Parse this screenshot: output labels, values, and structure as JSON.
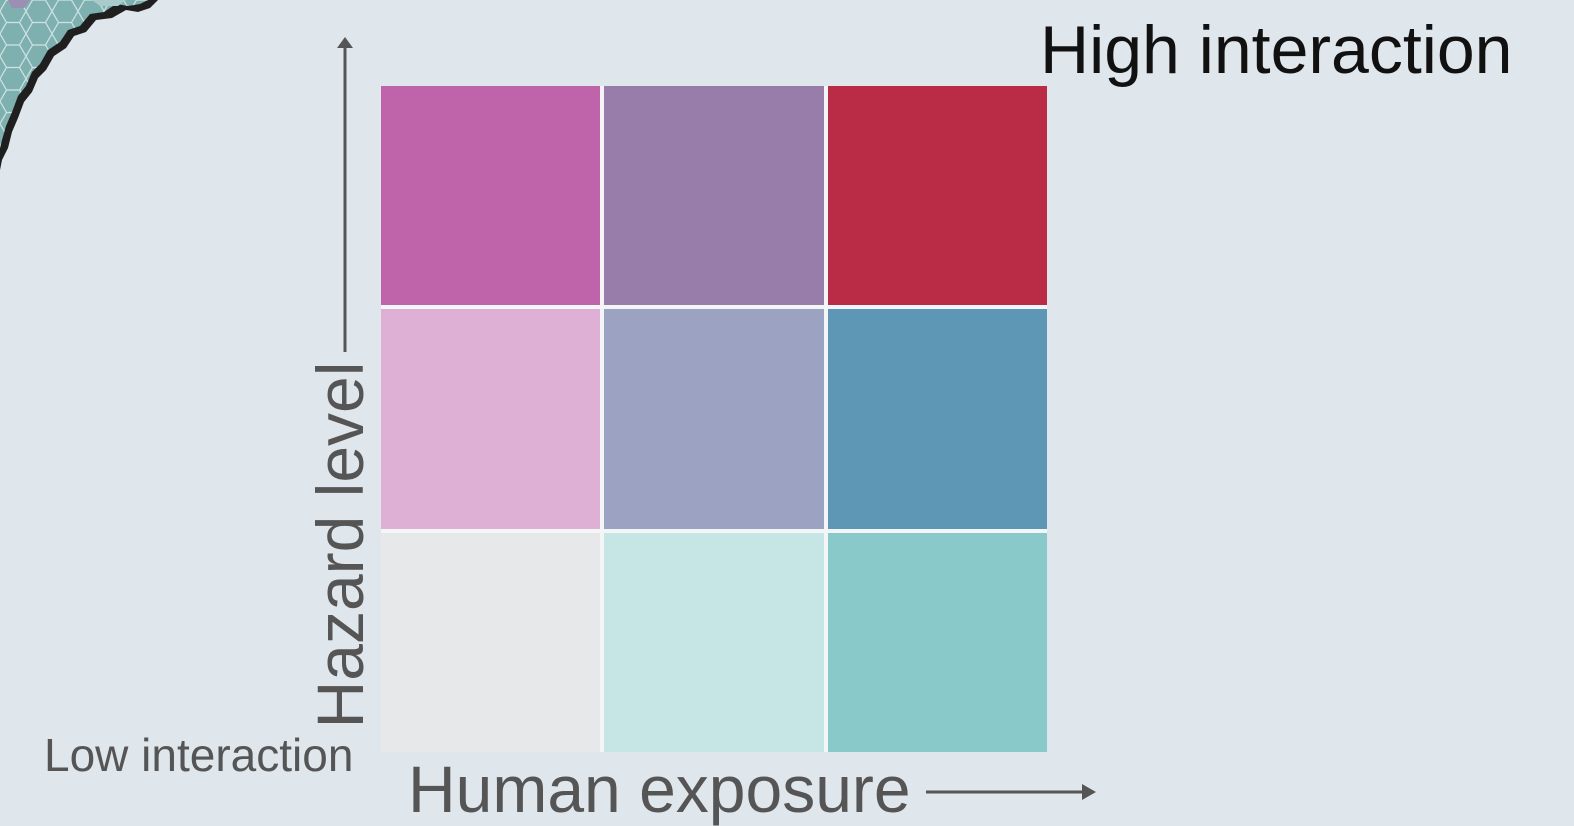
{
  "labels": {
    "high": "High interaction",
    "low": "Low interaction",
    "x_axis": "Human exposure",
    "y_axis": "Hazard level"
  },
  "matrix": {
    "rows": [
      [
        "#bf63aa",
        "#987daa",
        "#ba2c45"
      ],
      [
        "#dfb0d6",
        "#9ca2c2",
        "#5e97b5"
      ],
      [
        "#e7e8e9",
        "#c6e6e5",
        "#89c9c9"
      ]
    ]
  },
  "colors": {
    "background": "#dfe6ec",
    "axis": "#555555",
    "map_fill": "#7fb0b0",
    "map_edge": "#1f1f1f"
  },
  "icons": {
    "corner": "hex-map-fragment-icon"
  }
}
